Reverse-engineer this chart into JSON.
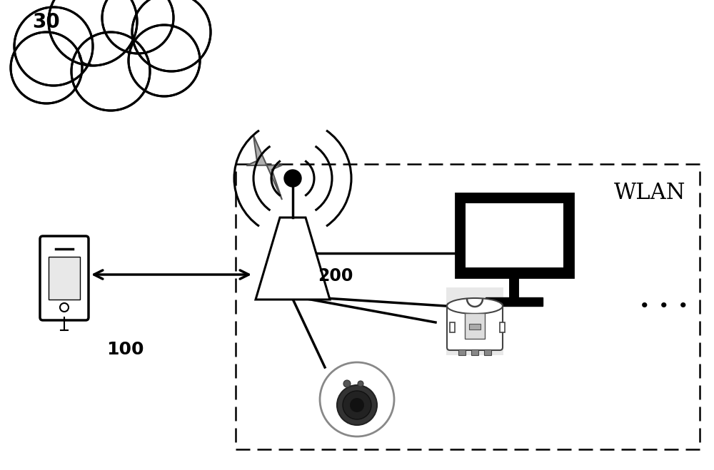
{
  "bg_color": "#ffffff",
  "label_30": "30",
  "label_100": "100",
  "label_200": "200",
  "label_wlan": "WLAN",
  "label_dots": "■  ■  ■",
  "figsize": [
    10.0,
    6.59
  ],
  "dpi": 100
}
